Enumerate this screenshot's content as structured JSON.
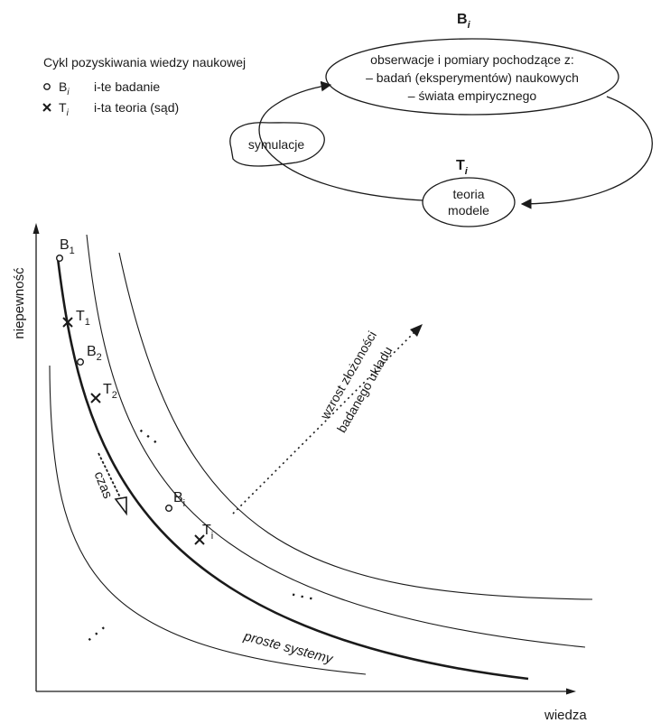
{
  "legend": {
    "title": "Cykl pozyskiwania wiedzy naukowej",
    "items": [
      {
        "symbol": "B",
        "sub": "i",
        "text": "i-te  badanie",
        "icon": "circle-icon"
      },
      {
        "symbol": "T",
        "sub": "i",
        "text": "i-ta  teoria (sąd)",
        "icon": "cross-icon"
      }
    ]
  },
  "cycle": {
    "top_node_label": "B",
    "top_node_sub": "i",
    "observation_lines": [
      "obserwacje i pomiary pochodzące z:",
      "– badań (eksperymentów) naukowych",
      "– świata empirycznego"
    ],
    "bottom_node_label": "T",
    "bottom_node_sub": "i",
    "theory_lines": [
      "teoria",
      "modele"
    ],
    "simulation_label": "symulacje"
  },
  "plot": {
    "y_axis_label": "niepewność",
    "x_axis_label": "wiedza",
    "points": [
      {
        "letter": "B",
        "sub": "1",
        "kind": "badanie"
      },
      {
        "letter": "T",
        "sub": "1",
        "kind": "teoria"
      },
      {
        "letter": "B",
        "sub": "2",
        "kind": "badanie"
      },
      {
        "letter": "T",
        "sub": "2",
        "kind": "teoria"
      },
      {
        "letter": "B",
        "sub": "i",
        "kind": "badanie"
      },
      {
        "letter": "T",
        "sub": "i",
        "kind": "teoria"
      }
    ],
    "time_label": "czas",
    "complexity_label_line1": "wzrost złożoności",
    "complexity_label_line2": "badanego układu",
    "simple_systems_label": "proste systemy",
    "ellipsis": "· · ·"
  }
}
